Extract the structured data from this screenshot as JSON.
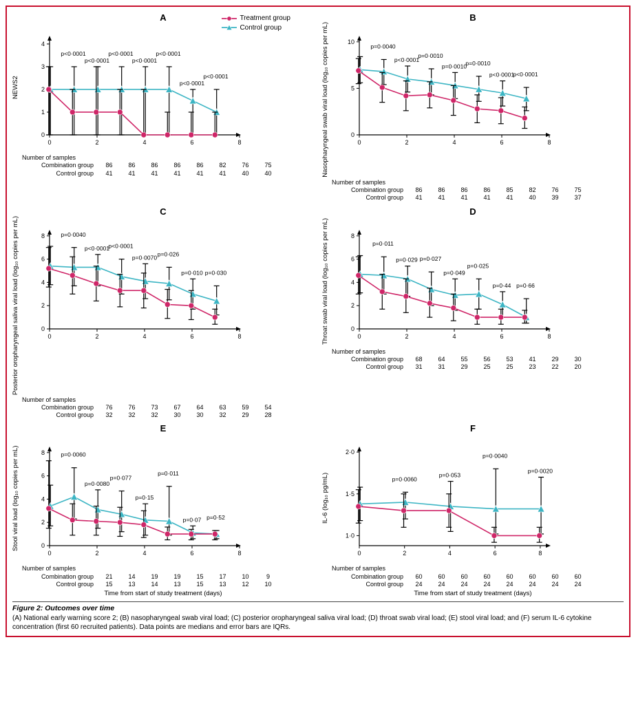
{
  "figure": {
    "border_color": "#c8102e",
    "title": "Figure 2: Outcomes over time",
    "caption": "(A) National early warning score 2; (B) nasopharyngeal swab viral load; (C) posterior oropharyngeal saliva viral load; (D) throat swab viral load; (E) stool viral load; and (F) serum IL-6 cytokine concentration (first 60 recruited patients). Data points are medians and error bars are IQRs.",
    "xlabel": "Time from start of study treatment (days)",
    "sample_header": "Number of samples",
    "combo_label": "Combination group",
    "control_label": "Control group",
    "legend": {
      "treatment": {
        "label": "Treatment group",
        "color": "#cf2668",
        "marker": "circle"
      },
      "control": {
        "label": "Control group",
        "color": "#3cb5c4",
        "marker": "triangle"
      }
    },
    "style": {
      "axis_color": "#000000",
      "tick_len": 4,
      "line_width": 1.6,
      "marker_size": 4,
      "err_width": 1.2,
      "err_cap": 4,
      "label_fontsize": 9.5,
      "tick_fontsize": 9,
      "pval_fontsize": 8.5
    }
  },
  "panels": {
    "A": {
      "letter": "A",
      "show_legend": true,
      "ylabel": "NEWS2",
      "ymin": 0,
      "ymax": 4.3,
      "yticks": [
        0,
        1,
        2,
        3,
        4
      ],
      "x": [
        0,
        1,
        2,
        3,
        4,
        5,
        6,
        7
      ],
      "xmax": 8,
      "xticks": [
        0,
        2,
        4,
        6,
        8
      ],
      "xticklabels": [
        "0",
        "2",
        "4",
        "6",
        "8"
      ],
      "treatment": {
        "y": [
          2,
          1,
          1,
          1,
          0,
          0,
          0,
          0
        ],
        "lo": [
          0,
          0,
          0,
          0,
          0,
          0,
          0,
          0
        ],
        "hi": [
          3,
          2,
          3,
          2,
          2,
          1,
          1,
          1
        ]
      },
      "control": {
        "y": [
          2,
          2,
          2,
          2,
          2,
          2,
          1.5,
          1
        ],
        "lo": [
          0,
          0,
          0,
          0,
          0,
          0,
          0,
          0
        ],
        "hi": [
          3,
          3,
          3,
          3,
          3,
          3,
          2,
          2
        ]
      },
      "pvals": [
        {
          "x": 1,
          "t": "p<0·0001"
        },
        {
          "x": 2,
          "t": "p<0·0001"
        },
        {
          "x": 3,
          "t": "p<0·0001"
        },
        {
          "x": 4,
          "t": "p<0·0001"
        },
        {
          "x": 5,
          "t": "p<0·0001"
        },
        {
          "x": 6,
          "t": "p<0·0001"
        },
        {
          "x": 7,
          "t": "p<0·0001"
        }
      ],
      "samples_combo": [
        86,
        86,
        86,
        86,
        86,
        82,
        76,
        75
      ],
      "samples_control": [
        41,
        41,
        41,
        41,
        41,
        41,
        40,
        40
      ],
      "show_xlabel": false
    },
    "B": {
      "letter": "B",
      "ylabel": "Nasopharyngeal swab viral load (log₁₀ copies per mL)",
      "ymin": 0,
      "ymax": 10.5,
      "yticks": [
        0,
        5,
        10
      ],
      "x": [
        0,
        1,
        2,
        3,
        4,
        5,
        6,
        7
      ],
      "xmax": 8,
      "xticks": [
        0,
        2,
        4,
        6,
        8
      ],
      "xticklabels": [
        "0",
        "2",
        "4",
        "6",
        "8"
      ],
      "treatment": {
        "y": [
          6.9,
          5.1,
          4.2,
          4.3,
          3.7,
          2.8,
          2.6,
          1.8
        ],
        "lo": [
          5.5,
          3.5,
          2.6,
          2.9,
          2.1,
          1.3,
          1.2,
          0.7
        ],
        "hi": [
          8.2,
          6.7,
          5.8,
          5.7,
          5.3,
          4.3,
          4.0,
          3.0
        ]
      },
      "control": {
        "y": [
          7.0,
          6.8,
          6.0,
          5.7,
          5.3,
          4.9,
          4.5,
          3.9
        ],
        "lo": [
          5.6,
          5.4,
          4.6,
          4.3,
          3.9,
          3.6,
          3.1,
          2.6
        ],
        "hi": [
          8.4,
          8.1,
          7.4,
          7.1,
          6.7,
          6.3,
          5.8,
          5.1
        ]
      },
      "pvals": [
        {
          "x": 1,
          "t": "p=0·0040"
        },
        {
          "x": 2,
          "t": "p<0·0001"
        },
        {
          "x": 3,
          "t": "p=0·0010"
        },
        {
          "x": 4,
          "t": "p=0·0010"
        },
        {
          "x": 5,
          "t": "p=0·0010"
        },
        {
          "x": 6,
          "t": "p<0·0001"
        },
        {
          "x": 7,
          "t": "p<0·0001"
        }
      ],
      "samples_combo": [
        86,
        86,
        86,
        86,
        85,
        82,
        76,
        75
      ],
      "samples_control": [
        41,
        41,
        41,
        41,
        41,
        40,
        39,
        37
      ],
      "show_xlabel": false
    },
    "C": {
      "letter": "C",
      "ylabel": "Posterior oropharyngeal saliva viral load (log₁₀ copies per mL)",
      "ymin": 0,
      "ymax": 8.4,
      "yticks": [
        0,
        2,
        4,
        6,
        8
      ],
      "x": [
        0,
        1,
        2,
        3,
        4,
        5,
        6,
        7
      ],
      "xmax": 8,
      "xticks": [
        0,
        2,
        4,
        6,
        8
      ],
      "xticklabels": [
        "0",
        "2",
        "4",
        "6",
        "8"
      ],
      "treatment": {
        "y": [
          5.2,
          4.6,
          3.9,
          3.3,
          3.3,
          2.1,
          2.0,
          1.0
        ],
        "lo": [
          3.6,
          3.0,
          2.4,
          1.9,
          1.8,
          0.9,
          0.8,
          0.4
        ],
        "hi": [
          7.0,
          6.2,
          5.4,
          4.7,
          4.8,
          3.4,
          3.3,
          1.7
        ]
      },
      "control": {
        "y": [
          5.4,
          5.3,
          5.3,
          4.5,
          4.1,
          3.9,
          3.0,
          2.4
        ],
        "lo": [
          3.8,
          3.7,
          3.7,
          3.0,
          2.6,
          2.5,
          1.7,
          1.2
        ],
        "hi": [
          7.1,
          7.0,
          6.4,
          6.0,
          5.6,
          5.3,
          4.3,
          3.7
        ]
      },
      "pvals": [
        {
          "x": 1,
          "t": "p=0·0040"
        },
        {
          "x": 2,
          "t": "p<0·0001"
        },
        {
          "x": 3,
          "t": "p<0·0001"
        },
        {
          "x": 4,
          "t": "p=0·0070"
        },
        {
          "x": 5,
          "t": "p=0·026"
        },
        {
          "x": 6,
          "t": "p=0·010"
        },
        {
          "x": 7,
          "t": "p=0·030"
        }
      ],
      "samples_combo": [
        76,
        76,
        73,
        67,
        64,
        63,
        59,
        54
      ],
      "samples_control": [
        32,
        32,
        32,
        30,
        30,
        32,
        29,
        28
      ],
      "show_xlabel": false
    },
    "D": {
      "letter": "D",
      "ylabel": "Throat swab viral load (log₁₀ copies per mL)",
      "ymin": 0,
      "ymax": 8.4,
      "yticks": [
        0,
        2,
        4,
        6,
        8
      ],
      "x": [
        0,
        1,
        2,
        3,
        4,
        5,
        6,
        7
      ],
      "xmax": 8,
      "xticks": [
        0,
        2,
        4,
        6,
        8
      ],
      "xticklabels": [
        "0",
        "2",
        "4",
        "6",
        "8"
      ],
      "treatment": {
        "y": [
          4.6,
          3.2,
          2.8,
          2.2,
          1.8,
          1.0,
          1.0,
          1.0
        ],
        "lo": [
          3.0,
          1.7,
          1.4,
          1.0,
          0.7,
          0.4,
          0.4,
          0.5
        ],
        "hi": [
          6.2,
          4.7,
          4.3,
          3.5,
          3.0,
          1.7,
          1.7,
          1.6
        ]
      },
      "control": {
        "y": [
          4.7,
          4.6,
          4.3,
          3.4,
          2.9,
          3.0,
          2.1,
          1.0
        ],
        "lo": [
          3.1,
          3.0,
          2.8,
          2.0,
          1.6,
          1.7,
          1.0,
          0.5
        ],
        "hi": [
          6.3,
          6.2,
          5.4,
          4.9,
          4.3,
          4.3,
          3.2,
          2.6
        ]
      },
      "pvals": [
        {
          "x": 1,
          "t": "p=0·011"
        },
        {
          "x": 2,
          "t": "p=0·029"
        },
        {
          "x": 3,
          "t": "p=0·027"
        },
        {
          "x": 4,
          "t": "p=0·049"
        },
        {
          "x": 5,
          "t": "p=0·025"
        },
        {
          "x": 6,
          "t": "p=0·44"
        },
        {
          "x": 7,
          "t": "p=0·66"
        }
      ],
      "samples_combo": [
        68,
        64,
        55,
        56,
        53,
        41,
        29,
        30
      ],
      "samples_control": [
        31,
        31,
        29,
        25,
        25,
        23,
        22,
        20
      ],
      "show_xlabel": false
    },
    "E": {
      "letter": "E",
      "ylabel": "Stool viral load (log₁₀ copies per mL)",
      "ymin": 0,
      "ymax": 8.4,
      "yticks": [
        0,
        2,
        4,
        6,
        8
      ],
      "x": [
        0,
        1,
        2,
        3,
        4,
        5,
        6,
        7
      ],
      "xmax": 8,
      "xticks": [
        0,
        2,
        4,
        6,
        8
      ],
      "xticklabels": [
        "0",
        "2",
        "4",
        "6",
        "8"
      ],
      "treatment": {
        "y": [
          3.2,
          2.2,
          2.1,
          2.0,
          1.8,
          1.0,
          1.0,
          1.0
        ],
        "lo": [
          1.5,
          0.9,
          0.9,
          0.8,
          0.7,
          0.5,
          0.5,
          0.5
        ],
        "hi": [
          7.3,
          3.6,
          3.4,
          3.3,
          3.0,
          1.6,
          1.4,
          1.3
        ]
      },
      "control": {
        "y": [
          3.4,
          4.2,
          3.1,
          2.7,
          2.2,
          2.1,
          1.1,
          1.0
        ],
        "lo": [
          1.7,
          2.3,
          1.5,
          1.2,
          0.9,
          0.9,
          0.6,
          0.6
        ],
        "hi": [
          5.2,
          6.7,
          4.8,
          4.7,
          3.6,
          5.1,
          1.7,
          1.3
        ]
      },
      "pvals": [
        {
          "x": 1,
          "t": "p=0·0060"
        },
        {
          "x": 2,
          "t": "p=0·0080"
        },
        {
          "x": 3,
          "t": "p=0·077"
        },
        {
          "x": 4,
          "t": "p=0·15"
        },
        {
          "x": 5,
          "t": "p=0·011"
        },
        {
          "x": 6,
          "t": "p=0·07"
        },
        {
          "x": 7,
          "t": "p=0·52"
        }
      ],
      "samples_combo": [
        21,
        14,
        19,
        19,
        15,
        17,
        10,
        9
      ],
      "samples_control": [
        15,
        13,
        14,
        13,
        15,
        13,
        12,
        10
      ],
      "show_xlabel": true
    },
    "F": {
      "letter": "F",
      "ylabel": "IL-6 (log₁₀ pg/mL)",
      "ymin": 0.88,
      "ymax": 2.05,
      "yticks": [
        1.0,
        1.5,
        2.0
      ],
      "yticklabels": [
        "1·0",
        "1·5",
        "2·0"
      ],
      "x": [
        0,
        2,
        4,
        6,
        8
      ],
      "xmax": 8.4,
      "xticks": [
        0,
        2,
        4,
        6,
        8
      ],
      "xticklabels": [
        "0",
        "2",
        "4",
        "6",
        "8"
      ],
      "treatment": {
        "y": [
          1.35,
          1.3,
          1.3,
          1.0,
          1.0
        ],
        "lo": [
          1.15,
          1.1,
          1.1,
          0.92,
          0.92
        ],
        "hi": [
          1.55,
          1.5,
          1.5,
          1.1,
          1.1
        ]
      },
      "control": {
        "y": [
          1.38,
          1.4,
          1.35,
          1.32,
          1.32
        ],
        "lo": [
          1.18,
          1.2,
          1.05,
          1.02,
          1.02
        ],
        "hi": [
          1.58,
          1.52,
          1.65,
          1.8,
          1.7
        ]
      },
      "pvals": [
        {
          "x": 2,
          "t": "p=0·0060"
        },
        {
          "x": 4,
          "t": "p=0·053"
        },
        {
          "x": 6,
          "t": "p=0·0040"
        },
        {
          "x": 8,
          "t": "p=0·0020"
        }
      ],
      "samples_combo": [
        60,
        60,
        60,
        60,
        60,
        60,
        60,
        60
      ],
      "samples_control": [
        24,
        24,
        24,
        24,
        24,
        24,
        24,
        24
      ],
      "sample_x": [
        0,
        1,
        2,
        3,
        4,
        5,
        6,
        7
      ],
      "show_xlabel": true
    }
  }
}
